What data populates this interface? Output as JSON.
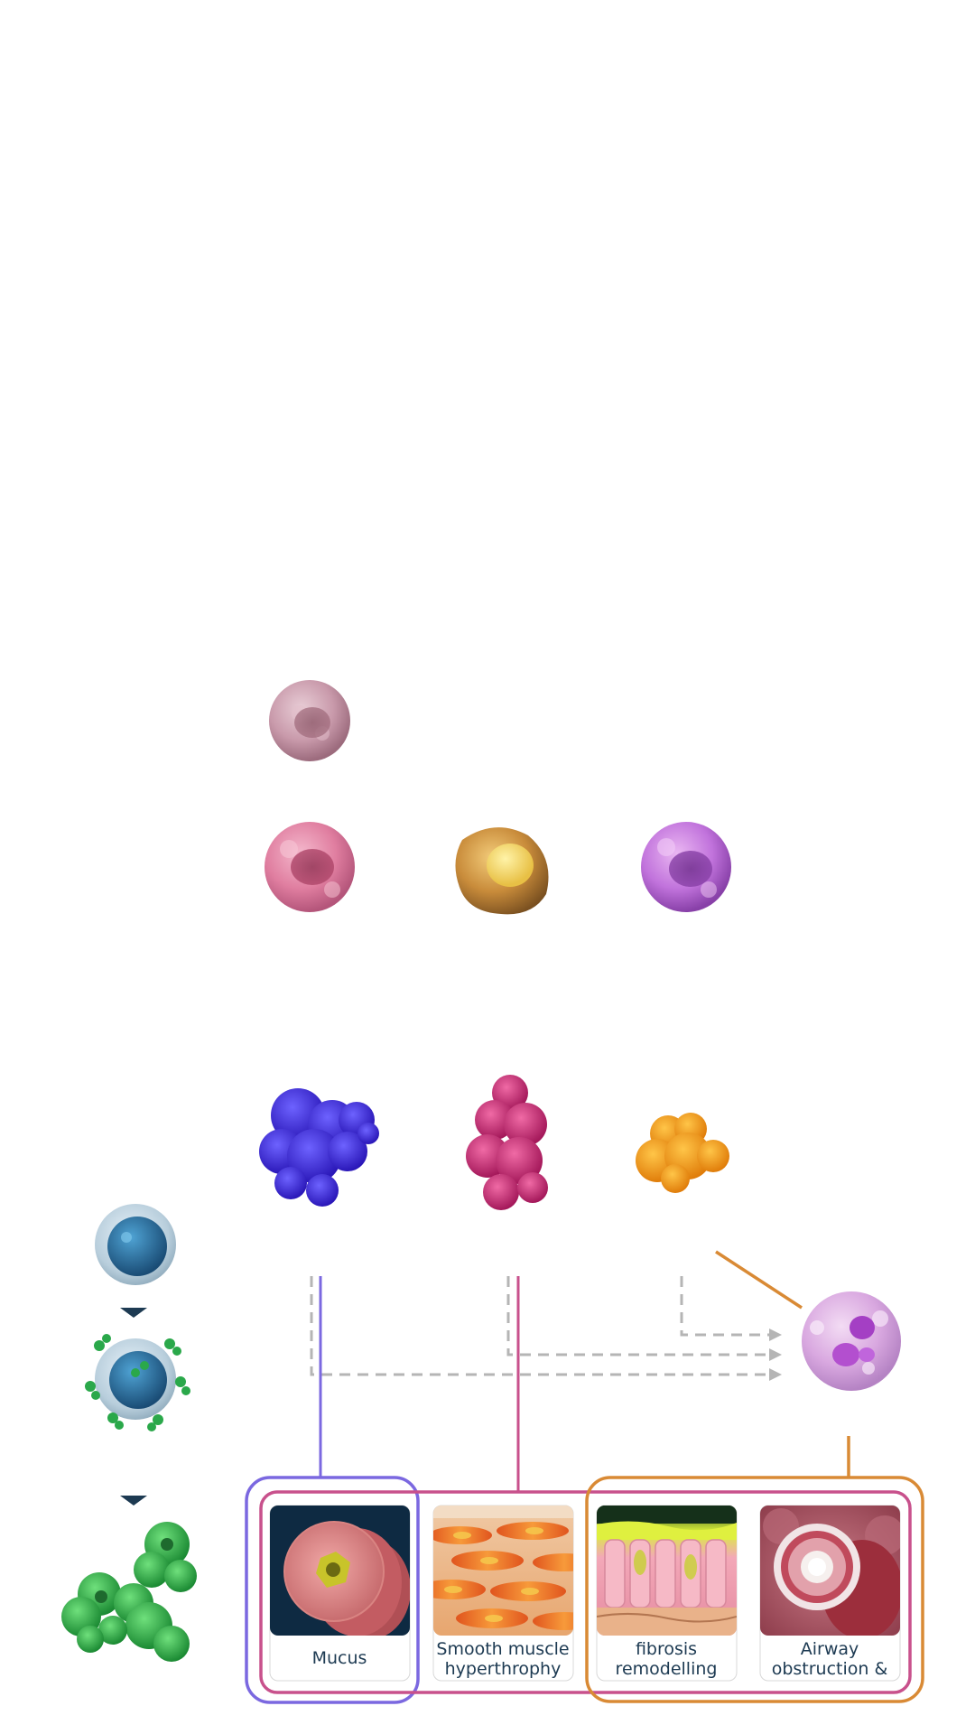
{
  "colors": {
    "il5_line": "#7b68e0",
    "il13_line": "#c8518c",
    "il4_line": "#d98a35",
    "dashed": "#b5b5b5",
    "arrow_dark": "#1d3a52",
    "card_dark_bg": "#0e2a42",
    "label_text": "#1d3a52"
  },
  "icons": {
    "cells": [
      "pale-pink-cell",
      "pink-cell",
      "yellow-cell",
      "purple-cell"
    ],
    "cytokines": [
      "blue-cytokine",
      "magenta-cytokine",
      "orange-cytokine"
    ],
    "other": [
      "eosinophil-cell",
      "b-cell",
      "b-cell-with-antibodies",
      "antibody-cluster",
      "down-arrow-icon"
    ]
  },
  "cards": [
    {
      "label_lines": [
        "Mucus"
      ],
      "image": "airway-mucus-cross-section"
    },
    {
      "label_lines": [
        "Smooth muscle",
        "hyperthrophy"
      ],
      "image": "smooth-muscle-fibers"
    },
    {
      "label_lines": [
        "fibrosis",
        "remodelling"
      ],
      "image": "epithelium-fibrosis"
    },
    {
      "label_lines": [
        "Airway",
        "obstruction &"
      ],
      "image": "airway-obstruction-tube"
    }
  ]
}
